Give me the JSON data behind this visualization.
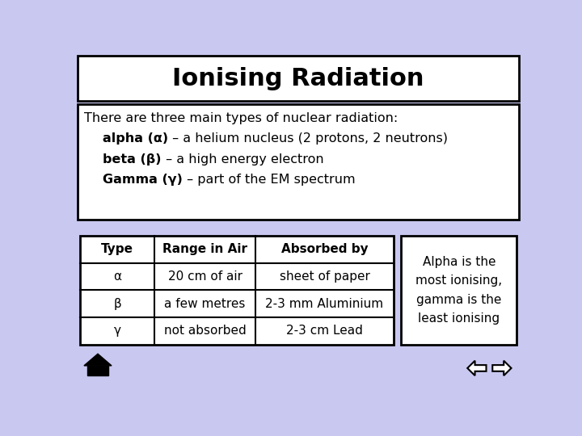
{
  "title": "Ionising Radiation",
  "bg_color": "#c8c8f0",
  "title_box_color": "#ffffff",
  "content_box_color": "#ffffff",
  "table_box_color": "#ffffff",
  "note_box_color": "#ffffff",
  "intro_text": "There are three main types of nuclear radiation:",
  "bullet1_bold": "alpha (α)",
  "bullet1_rest": " – a helium nucleus (2 protons, 2 neutrons)",
  "bullet2_bold": "beta (β)",
  "bullet2_rest": " – a high energy electron",
  "bullet3_bold": "Gamma (γ)",
  "bullet3_rest": " – part of the EM spectrum",
  "table_headers": [
    "Type",
    "Range in Air",
    "Absorbed by"
  ],
  "table_rows": [
    [
      "α",
      "20 cm of air",
      "sheet of paper"
    ],
    [
      "β",
      "a few metres",
      "2-3 mm Aluminium"
    ],
    [
      "γ",
      "not absorbed",
      "2-3 cm Lead"
    ]
  ],
  "note_text": "Alpha is the\nmost ionising,\ngamma is the\nleast ionising",
  "title_fontsize": 22,
  "body_fontsize": 11.5,
  "table_fontsize": 11,
  "note_fontsize": 11
}
